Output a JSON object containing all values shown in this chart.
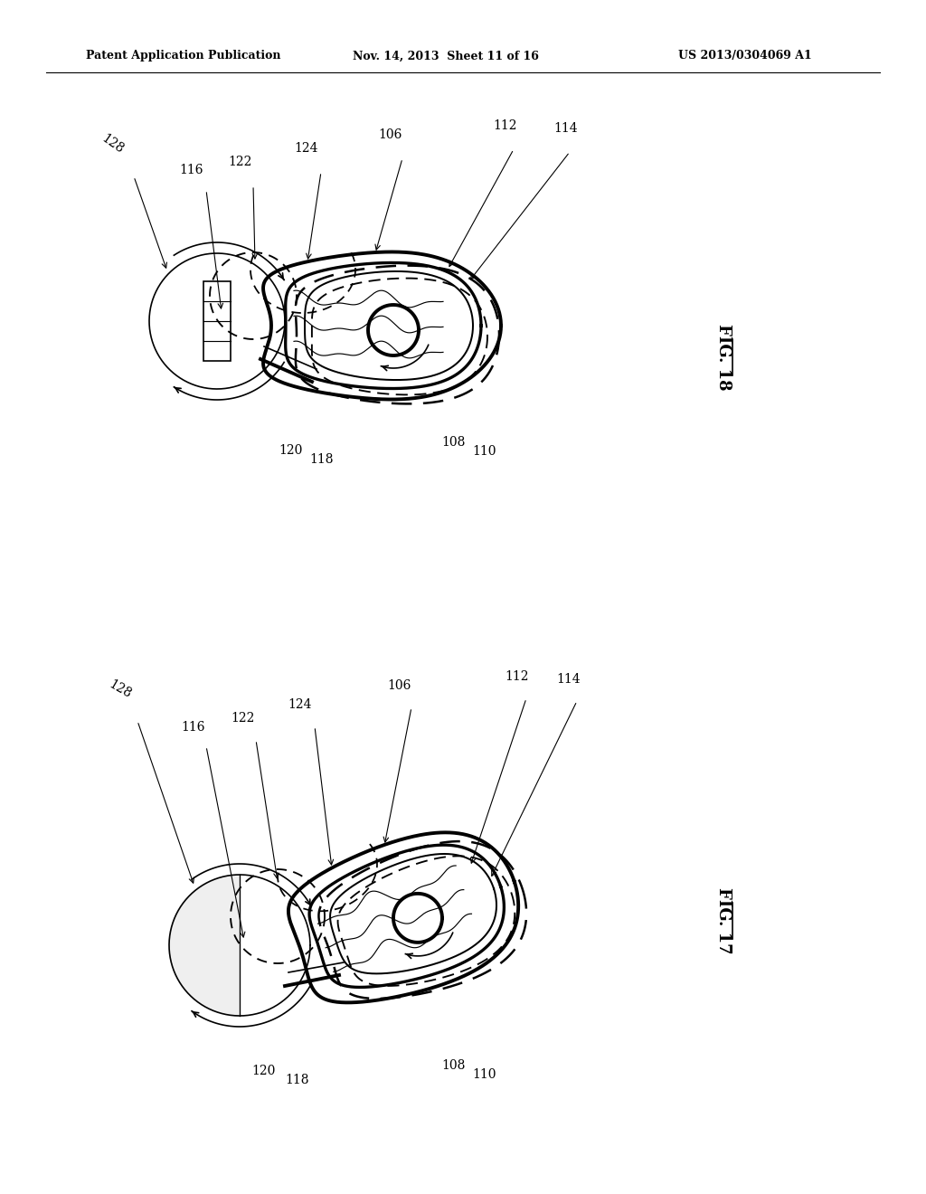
{
  "bg_color": "#ffffff",
  "header_left": "Patent Application Publication",
  "header_mid": "Nov. 14, 2013  Sheet 11 of 16",
  "header_right": "US 2013/0304069 A1",
  "fig18_label": "FIG. 18",
  "fig17_label": "FIG. 17",
  "line_color": "#000000",
  "thick_lw": 2.8,
  "thin_lw": 1.2,
  "dashed_lw": 1.8
}
